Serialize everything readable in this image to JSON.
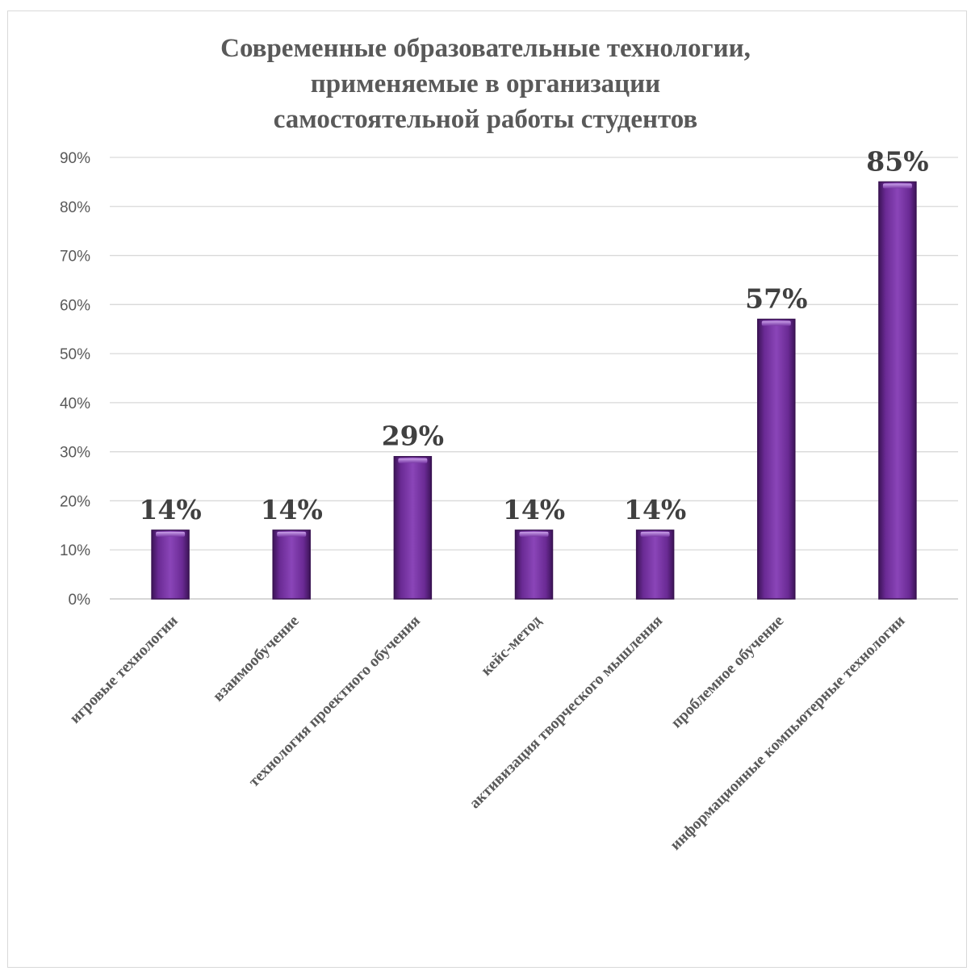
{
  "chart_data": {
    "type": "bar",
    "title": [
      "Современные образовательные технологии,",
      "применяемые в организации",
      "самостоятельной работы студентов"
    ],
    "categories": [
      "игровые технологии",
      "взаимообучение",
      "технология проектного обучения",
      "кейс-метод",
      "активизация творческого мышления",
      "проблемное обучение",
      "информационные компьютерные технологии"
    ],
    "values": [
      14,
      14,
      29,
      14,
      14,
      57,
      85
    ],
    "data_labels": [
      "14%",
      "14%",
      "29%",
      "14%",
      "14%",
      "57%",
      "85%"
    ],
    "ylim": [
      0,
      90
    ],
    "yticks": [
      "0%",
      "10%",
      "20%",
      "30%",
      "40%",
      "50%",
      "60%",
      "70%",
      "80%",
      "90%"
    ],
    "grid": true,
    "bar_color": "#7030a0",
    "xlabel": "",
    "ylabel": ""
  }
}
